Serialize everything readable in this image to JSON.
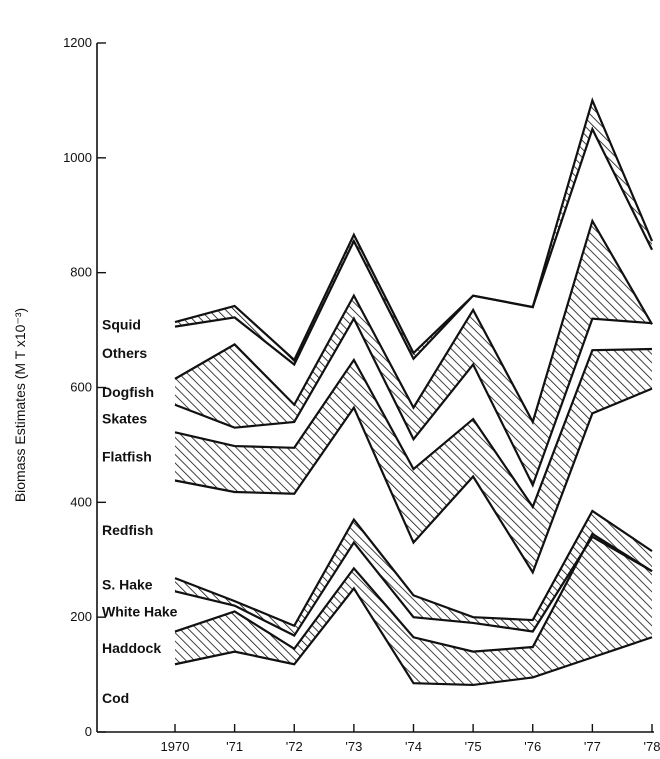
{
  "chart_data": {
    "type": "area",
    "title": "",
    "xlabel": "",
    "ylabel": "Biomass  Estimates  (M T x10⁻³)",
    "categories": [
      "1970",
      "'71",
      "'72",
      "'73",
      "'74",
      "'75",
      "'76",
      "'77",
      "'78"
    ],
    "ylim": [
      0,
      1200
    ],
    "yticks": [
      0,
      200,
      400,
      600,
      800,
      1000,
      1200
    ],
    "grid": false,
    "legend": "none",
    "stack_order_bottom_to_top": [
      "Cod",
      "Haddock",
      "White Hake",
      "S. Hake",
      "Redfish",
      "Flatfish",
      "Skates",
      "Dogfish",
      "Others",
      "Squid"
    ],
    "cumulative_boundaries": [
      {
        "top_of": "Cod",
        "values": [
          118,
          140,
          118,
          250,
          85,
          82,
          95,
          130,
          165
        ]
      },
      {
        "top_of": "Haddock",
        "values": [
          175,
          210,
          145,
          285,
          165,
          140,
          148,
          345,
          280
        ]
      },
      {
        "top_of": "White Hake",
        "values": [
          245,
          220,
          168,
          330,
          200,
          190,
          175,
          340,
          280
        ]
      },
      {
        "top_of": "S. Hake",
        "values": [
          268,
          228,
          185,
          370,
          238,
          200,
          195,
          385,
          315
        ]
      },
      {
        "top_of": "Redfish",
        "values": [
          438,
          418,
          415,
          565,
          330,
          445,
          278,
          555,
          598
        ]
      },
      {
        "top_of": "Flatfish",
        "values": [
          522,
          498,
          495,
          648,
          458,
          545,
          392,
          665,
          667
        ]
      },
      {
        "top_of": "Skates",
        "values": [
          570,
          530,
          540,
          720,
          510,
          640,
          430,
          720,
          712
        ]
      },
      {
        "top_of": "Dogfish",
        "values": [
          615,
          675,
          570,
          760,
          565,
          735,
          540,
          890,
          710
        ]
      },
      {
        "top_of": "Others",
        "values": [
          706,
          722,
          640,
          855,
          650,
          760,
          740,
          1050,
          840
        ]
      },
      {
        "top_of": "Squid",
        "values": [
          714,
          742,
          648,
          866,
          660,
          760,
          740,
          1100,
          855
        ]
      }
    ],
    "series": [
      {
        "name": "Cod",
        "fill": "white"
      },
      {
        "name": "Haddock",
        "fill": "hatched"
      },
      {
        "name": "White Hake",
        "fill": "white"
      },
      {
        "name": "S. Hake",
        "fill": "hatched"
      },
      {
        "name": "Redfish",
        "fill": "white"
      },
      {
        "name": "Flatfish",
        "fill": "hatched"
      },
      {
        "name": "Skates",
        "fill": "white"
      },
      {
        "name": "Dogfish",
        "fill": "hatched"
      },
      {
        "name": "Others",
        "fill": "white"
      },
      {
        "name": "Squid",
        "fill": "hatched"
      }
    ],
    "colors": {
      "ink": "#111111",
      "background": "#ffffff"
    }
  }
}
